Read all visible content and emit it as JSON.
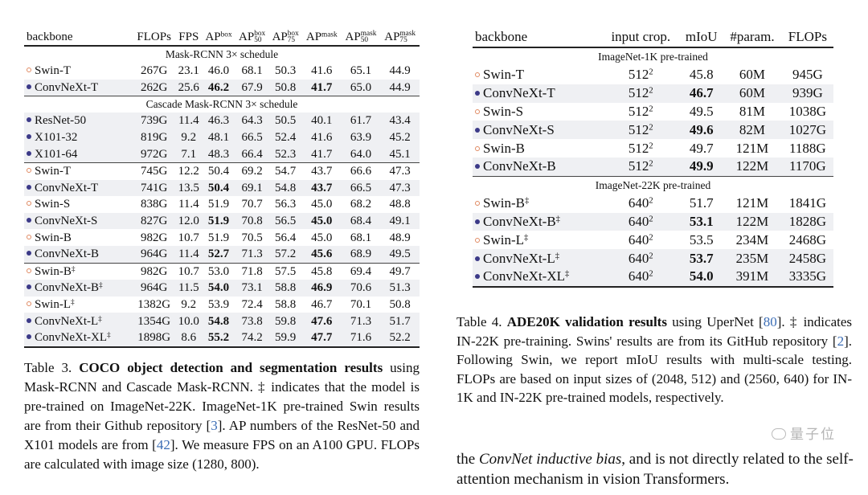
{
  "colors": {
    "swin_marker": "#e08a62",
    "convnext_marker": "#3c3a88",
    "link": "#3b6db5",
    "row_shade": "#eff0f3"
  },
  "table3": {
    "headers": [
      {
        "base": "backbone"
      },
      {
        "base": "FLOPs"
      },
      {
        "base": "FPS"
      },
      {
        "base": "AP",
        "sup": "box"
      },
      {
        "base": "AP",
        "sup": "box",
        "sub": "50"
      },
      {
        "base": "AP",
        "sup": "box",
        "sub": "75"
      },
      {
        "base": "AP",
        "sup": "mask"
      },
      {
        "base": "AP",
        "sup": "mask",
        "sub": "50"
      },
      {
        "base": "AP",
        "sup": "mask",
        "sub": "75"
      }
    ],
    "groups": [
      {
        "title": "Mask-RCNN 3× schedule",
        "rows": [
          {
            "marker": "open",
            "name": "Swin-T",
            "cells": [
              "267G",
              "23.1",
              "46.0",
              "68.1",
              "50.3",
              "41.6",
              "65.1",
              "44.9"
            ],
            "bold": []
          },
          {
            "marker": "fill",
            "name": "ConvNeXt-T",
            "cells": [
              "262G",
              "25.6",
              "46.2",
              "67.9",
              "50.8",
              "41.7",
              "65.0",
              "44.9"
            ],
            "bold": [
              2,
              5
            ]
          }
        ]
      },
      {
        "title": "Cascade Mask-RCNN 3× schedule",
        "rows": [
          {
            "marker": "fill",
            "name": "ResNet-50",
            "cells": [
              "739G",
              "11.4",
              "46.3",
              "64.3",
              "50.5",
              "40.1",
              "61.7",
              "43.4"
            ],
            "bold": []
          },
          {
            "marker": "fill",
            "name": "X101-32",
            "cells": [
              "819G",
              "9.2",
              "48.1",
              "66.5",
              "52.4",
              "41.6",
              "63.9",
              "45.2"
            ],
            "bold": []
          },
          {
            "marker": "fill",
            "name": "X101-64",
            "cells": [
              "972G",
              "7.1",
              "48.3",
              "66.4",
              "52.3",
              "41.7",
              "64.0",
              "45.1"
            ],
            "bold": []
          },
          {
            "marker": "open",
            "name": "Swin-T",
            "cells": [
              "745G",
              "12.2",
              "50.4",
              "69.2",
              "54.7",
              "43.7",
              "66.6",
              "47.3"
            ],
            "bold": [],
            "rule": true
          },
          {
            "marker": "fill",
            "name": "ConvNeXt-T",
            "cells": [
              "741G",
              "13.5",
              "50.4",
              "69.1",
              "54.8",
              "43.7",
              "66.5",
              "47.3"
            ],
            "bold": [
              2,
              5
            ]
          },
          {
            "marker": "open",
            "name": "Swin-S",
            "cells": [
              "838G",
              "11.4",
              "51.9",
              "70.7",
              "56.3",
              "45.0",
              "68.2",
              "48.8"
            ],
            "bold": []
          },
          {
            "marker": "fill",
            "name": "ConvNeXt-S",
            "cells": [
              "827G",
              "12.0",
              "51.9",
              "70.8",
              "56.5",
              "45.0",
              "68.4",
              "49.1"
            ],
            "bold": [
              2,
              5
            ]
          },
          {
            "marker": "open",
            "name": "Swin-B",
            "cells": [
              "982G",
              "10.7",
              "51.9",
              "70.5",
              "56.4",
              "45.0",
              "68.1",
              "48.9"
            ],
            "bold": []
          },
          {
            "marker": "fill",
            "name": "ConvNeXt-B",
            "cells": [
              "964G",
              "11.4",
              "52.7",
              "71.3",
              "57.2",
              "45.6",
              "68.9",
              "49.5"
            ],
            "bold": [
              2,
              5
            ]
          },
          {
            "marker": "open",
            "name": "Swin-B",
            "dagger": "‡",
            "cells": [
              "982G",
              "10.7",
              "53.0",
              "71.8",
              "57.5",
              "45.8",
              "69.4",
              "49.7"
            ],
            "bold": [],
            "rule": true
          },
          {
            "marker": "fill",
            "name": "ConvNeXt-B",
            "dagger": "‡",
            "cells": [
              "964G",
              "11.5",
              "54.0",
              "73.1",
              "58.8",
              "46.9",
              "70.6",
              "51.3"
            ],
            "bold": [
              2,
              5
            ]
          },
          {
            "marker": "open",
            "name": "Swin-L",
            "dagger": "‡",
            "cells": [
              "1382G",
              "9.2",
              "53.9",
              "72.4",
              "58.8",
              "46.7",
              "70.1",
              "50.8"
            ],
            "bold": []
          },
          {
            "marker": "fill",
            "name": "ConvNeXt-L",
            "dagger": "‡",
            "cells": [
              "1354G",
              "10.0",
              "54.8",
              "73.8",
              "59.8",
              "47.6",
              "71.3",
              "51.7"
            ],
            "bold": [
              2,
              5
            ]
          },
          {
            "marker": "fill",
            "name": "ConvNeXt-XL",
            "dagger": "‡",
            "cells": [
              "1898G",
              "8.6",
              "55.2",
              "74.2",
              "59.9",
              "47.7",
              "71.6",
              "52.2"
            ],
            "bold": [
              2,
              5
            ]
          }
        ]
      }
    ],
    "caption": [
      {
        "t": "Table 3. "
      },
      {
        "t": "COCO object detection and segmentation results",
        "b": true
      },
      {
        "t": " using Mask-RCNN and Cascade Mask-RCNN. ‡ indicates that the model is pre-trained on ImageNet-22K. ImageNet-1K pre-trained Swin results are from their Github repository ["
      },
      {
        "t": "3",
        "link": true
      },
      {
        "t": "]. AP numbers of the ResNet-50 and X101 models are from ["
      },
      {
        "t": "42",
        "link": true
      },
      {
        "t": "]. We measure FPS on an A100 GPU. FLOPs are calculated with image size (1280, 800)."
      }
    ]
  },
  "table4": {
    "headers": [
      {
        "base": "backbone"
      },
      {
        "base": "input crop."
      },
      {
        "base": "mIoU"
      },
      {
        "base": "#param."
      },
      {
        "base": "FLOPs"
      }
    ],
    "groups": [
      {
        "title": "ImageNet-1K pre-trained",
        "rows": [
          {
            "marker": "open",
            "name": "Swin-T",
            "crop": "512",
            "crop_exp": "2",
            "cells": [
              "45.8",
              "60M",
              "945G"
            ],
            "bold": []
          },
          {
            "marker": "fill",
            "name": "ConvNeXt-T",
            "crop": "512",
            "crop_exp": "2",
            "cells": [
              "46.7",
              "60M",
              "939G"
            ],
            "bold": [
              0
            ]
          },
          {
            "marker": "open",
            "name": "Swin-S",
            "crop": "512",
            "crop_exp": "2",
            "cells": [
              "49.5",
              "81M",
              "1038G"
            ],
            "bold": []
          },
          {
            "marker": "fill",
            "name": "ConvNeXt-S",
            "crop": "512",
            "crop_exp": "2",
            "cells": [
              "49.6",
              "82M",
              "1027G"
            ],
            "bold": [
              0
            ]
          },
          {
            "marker": "open",
            "name": "Swin-B",
            "crop": "512",
            "crop_exp": "2",
            "cells": [
              "49.7",
              "121M",
              "1188G"
            ],
            "bold": []
          },
          {
            "marker": "fill",
            "name": "ConvNeXt-B",
            "crop": "512",
            "crop_exp": "2",
            "cells": [
              "49.9",
              "122M",
              "1170G"
            ],
            "bold": [
              0
            ]
          }
        ]
      },
      {
        "title": "ImageNet-22K pre-trained",
        "rows": [
          {
            "marker": "open",
            "name": "Swin-B",
            "dagger": "‡",
            "crop": "640",
            "crop_exp": "2",
            "cells": [
              "51.7",
              "121M",
              "1841G"
            ],
            "bold": []
          },
          {
            "marker": "fill",
            "name": "ConvNeXt-B",
            "dagger": "‡",
            "crop": "640",
            "crop_exp": "2",
            "cells": [
              "53.1",
              "122M",
              "1828G"
            ],
            "bold": [
              0
            ]
          },
          {
            "marker": "open",
            "name": "Swin-L",
            "dagger": "‡",
            "crop": "640",
            "crop_exp": "2",
            "cells": [
              "53.5",
              "234M",
              "2468G"
            ],
            "bold": []
          },
          {
            "marker": "fill",
            "name": "ConvNeXt-L",
            "dagger": "‡",
            "crop": "640",
            "crop_exp": "2",
            "cells": [
              "53.7",
              "235M",
              "2458G"
            ],
            "bold": [
              0
            ]
          },
          {
            "marker": "fill",
            "name": "ConvNeXt-XL",
            "dagger": "‡",
            "crop": "640",
            "crop_exp": "2",
            "cells": [
              "54.0",
              "391M",
              "3335G"
            ],
            "bold": [
              0
            ]
          }
        ]
      }
    ],
    "caption": [
      {
        "t": "Table 4. "
      },
      {
        "t": "ADE20K validation results",
        "b": true
      },
      {
        "t": " using UperNet ["
      },
      {
        "t": "80",
        "link": true
      },
      {
        "t": "]. ‡ indicates IN-22K pre-training. Swins' results are from its GitHub repository ["
      },
      {
        "t": "2",
        "link": true
      },
      {
        "t": "]. Following Swin, we report mIoU results with multi-scale testing. FLOPs are based on input sizes of (2048, 512) and (2560, 640) for IN-1K and IN-22K pre-trained models, respectively."
      }
    ]
  },
  "body_text": [
    {
      "t": "the "
    },
    {
      "t": "ConvNet inductive bias",
      "i": true
    },
    {
      "t": ", and is not directly related to the self-attention mechanism in vision Transformers."
    }
  ],
  "watermark": "量子位"
}
